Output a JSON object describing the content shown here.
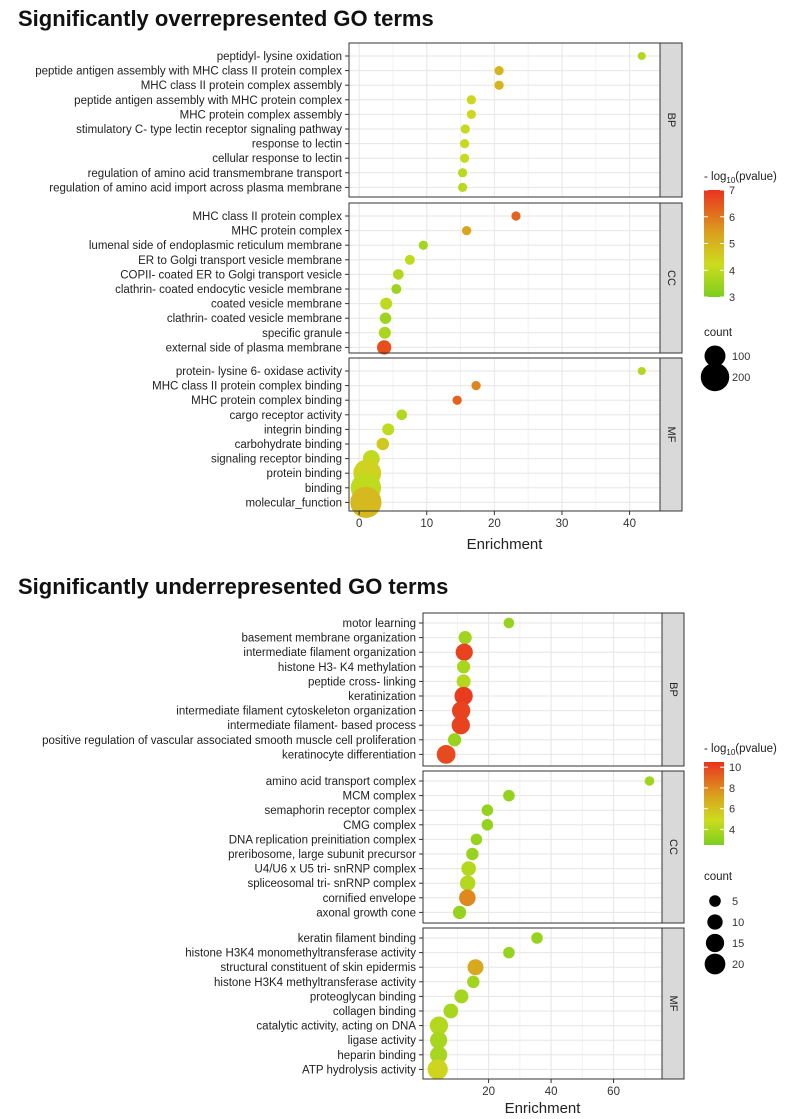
{
  "chart_data": [
    {
      "type": "scatter",
      "title": "Significantly overrepresented GO terms",
      "xlabel": "Enrichment",
      "xlim": [
        -1.5,
        44.5
      ],
      "x_ticks": [
        0,
        10,
        20,
        30,
        40
      ],
      "grid": true,
      "legend_position": "right",
      "color_legend": {
        "title_prefix": "- log",
        "title_sub": "10",
        "title_suffix": "(pvalue)",
        "min": 3,
        "max": 7,
        "ticks": [
          3,
          4,
          5,
          6,
          7
        ]
      },
      "size_legend": {
        "title": "count",
        "ticks": [
          100,
          200
        ]
      },
      "facets": [
        {
          "label": "BP",
          "points": [
            {
              "term": "peptidyl- lysine oxidation",
              "x": 41.8,
              "pval": 3.8,
              "count": 8
            },
            {
              "term": "peptide antigen assembly with MHC class II protein complex",
              "x": 20.7,
              "pval": 5.0,
              "count": 12
            },
            {
              "term": "MHC class II protein complex assembly",
              "x": 20.7,
              "pval": 5.0,
              "count": 12
            },
            {
              "term": "peptide antigen assembly with MHC protein complex",
              "x": 16.6,
              "pval": 4.3,
              "count": 12
            },
            {
              "term": "MHC protein complex assembly",
              "x": 16.6,
              "pval": 4.3,
              "count": 12
            },
            {
              "term": "stimulatory C- type lectin receptor signaling pathway",
              "x": 15.7,
              "pval": 4.1,
              "count": 12
            },
            {
              "term": "response to lectin",
              "x": 15.6,
              "pval": 4.1,
              "count": 12
            },
            {
              "term": "cellular response to lectin",
              "x": 15.6,
              "pval": 4.1,
              "count": 12
            },
            {
              "term": "regulation of amino acid transmembrane transport",
              "x": 15.3,
              "pval": 3.9,
              "count": 12
            },
            {
              "term": "regulation of amino acid import across plasma membrane",
              "x": 15.3,
              "pval": 3.9,
              "count": 12
            }
          ]
        },
        {
          "label": "CC",
          "points": [
            {
              "term": "MHC class II protein complex",
              "x": 23.2,
              "pval": 6.3,
              "count": 12
            },
            {
              "term": "MHC protein complex",
              "x": 15.9,
              "pval": 5.3,
              "count": 12
            },
            {
              "term": "lumenal side of endoplasmic reticulum membrane",
              "x": 9.5,
              "pval": 3.6,
              "count": 12
            },
            {
              "term": "ER to Golgi transport vesicle membrane",
              "x": 7.5,
              "pval": 4.0,
              "count": 15
            },
            {
              "term": "COPII- coated ER to Golgi transport vesicle",
              "x": 5.8,
              "pval": 3.8,
              "count": 18
            },
            {
              "term": "clathrin- coated endocytic vesicle membrane",
              "x": 5.5,
              "pval": 3.5,
              "count": 15
            },
            {
              "term": "coated vesicle membrane",
              "x": 4.0,
              "pval": 4.0,
              "count": 25
            },
            {
              "term": "clathrin- coated vesicle membrane",
              "x": 3.9,
              "pval": 3.5,
              "count": 22
            },
            {
              "term": "specific granule",
              "x": 3.8,
              "pval": 3.7,
              "count": 25
            },
            {
              "term": "external side of plasma membrane",
              "x": 3.7,
              "pval": 6.6,
              "count": 40
            }
          ]
        },
        {
          "label": "MF",
          "points": [
            {
              "term": "protein- lysine 6- oxidase activity",
              "x": 41.8,
              "pval": 3.8,
              "count": 8
            },
            {
              "term": "MHC class II protein complex binding",
              "x": 17.3,
              "pval": 5.8,
              "count": 12
            },
            {
              "term": "MHC protein complex binding",
              "x": 14.5,
              "pval": 6.3,
              "count": 12
            },
            {
              "term": "cargo receptor activity",
              "x": 6.3,
              "pval": 3.8,
              "count": 18
            },
            {
              "term": "integrin binding",
              "x": 4.3,
              "pval": 4.0,
              "count": 25
            },
            {
              "term": "carbohydrate binding",
              "x": 3.5,
              "pval": 4.6,
              "count": 28
            },
            {
              "term": "signaling receptor binding",
              "x": 1.8,
              "pval": 4.0,
              "count": 60
            },
            {
              "term": "protein binding",
              "x": 1.2,
              "pval": 4.4,
              "count": 190
            },
            {
              "term": "binding",
              "x": 1.0,
              "pval": 4.0,
              "count": 230
            },
            {
              "term": "molecular_function",
              "x": 1.0,
              "pval": 4.9,
              "count": 245
            }
          ]
        }
      ]
    },
    {
      "type": "scatter",
      "title": "Significantly underrepresented GO terms",
      "xlabel": "Enrichment",
      "xlim": [
        -1.0,
        75.5
      ],
      "x_ticks": [
        20,
        40,
        60
      ],
      "grid": true,
      "legend_position": "right",
      "color_legend": {
        "title_prefix": "- log",
        "title_sub": "10",
        "title_suffix": "(pvalue)",
        "min": 2.5,
        "max": 10.5,
        "ticks": [
          4,
          6,
          8,
          10
        ]
      },
      "size_legend": {
        "title": "count",
        "ticks": [
          5,
          10,
          15,
          20
        ]
      },
      "facets": [
        {
          "label": "BP",
          "points": [
            {
              "term": "motor learning",
              "x": 26.5,
              "pval": 3.3,
              "count": 4
            },
            {
              "term": "basement membrane organization",
              "x": 12.5,
              "pval": 3.6,
              "count": 7
            },
            {
              "term": "intermediate filament organization",
              "x": 12.2,
              "pval": 10.0,
              "count": 13
            },
            {
              "term": "histone H3- K4 methylation",
              "x": 12.0,
              "pval": 3.8,
              "count": 7
            },
            {
              "term": "peptide cross- linking",
              "x": 12.0,
              "pval": 4.2,
              "count": 8
            },
            {
              "term": "keratinization",
              "x": 12.0,
              "pval": 10.2,
              "count": 15
            },
            {
              "term": "intermediate filament cytoskeleton organization",
              "x": 11.2,
              "pval": 10.0,
              "count": 15
            },
            {
              "term": "intermediate filament- based process",
              "x": 11.1,
              "pval": 10.0,
              "count": 15
            },
            {
              "term": "positive regulation of vascular associated smooth muscle cell proliferation",
              "x": 9.1,
              "pval": 3.4,
              "count": 7
            },
            {
              "term": "keratinocyte differentiation",
              "x": 6.4,
              "pval": 9.8,
              "count": 16
            }
          ]
        },
        {
          "label": "CC",
          "points": [
            {
              "term": "amino acid transport complex",
              "x": 71.5,
              "pval": 3.5,
              "count": 3
            },
            {
              "term": "MCM complex",
              "x": 26.5,
              "pval": 3.2,
              "count": 5
            },
            {
              "term": "semaphorin receptor complex",
              "x": 19.6,
              "pval": 3.2,
              "count": 5
            },
            {
              "term": "CMG complex",
              "x": 19.6,
              "pval": 3.2,
              "count": 5
            },
            {
              "term": "DNA replication preinitiation complex",
              "x": 16.1,
              "pval": 3.3,
              "count": 5
            },
            {
              "term": "preribosome, large subunit precursor",
              "x": 14.8,
              "pval": 3.3,
              "count": 6
            },
            {
              "term": "U4/U6 x U5 tri- snRNP complex",
              "x": 13.6,
              "pval": 4.2,
              "count": 9
            },
            {
              "term": "spliceosomal tri- snRNP complex",
              "x": 13.3,
              "pval": 4.2,
              "count": 10
            },
            {
              "term": "cornified envelope",
              "x": 13.2,
              "pval": 8.0,
              "count": 12
            },
            {
              "term": "axonal growth cone",
              "x": 10.7,
              "pval": 3.3,
              "count": 7
            }
          ]
        },
        {
          "label": "MF",
          "points": [
            {
              "term": "keratin filament binding",
              "x": 35.5,
              "pval": 3.3,
              "count": 5
            },
            {
              "term": "histone H3K4 monomethyltransferase activity",
              "x": 26.5,
              "pval": 3.3,
              "count": 5
            },
            {
              "term": "structural constituent of skin epidermis",
              "x": 15.8,
              "pval": 7.0,
              "count": 11
            },
            {
              "term": "histone H3K4 methyltransferase activity",
              "x": 15.1,
              "pval": 3.6,
              "count": 6
            },
            {
              "term": "proteoglycan binding",
              "x": 11.3,
              "pval": 3.7,
              "count": 8
            },
            {
              "term": "collagen binding",
              "x": 7.9,
              "pval": 3.8,
              "count": 9
            },
            {
              "term": "catalytic activity, acting on DNA",
              "x": 4.1,
              "pval": 4.2,
              "count": 15
            },
            {
              "term": "ligase activity",
              "x": 4.0,
              "pval": 3.8,
              "count": 13
            },
            {
              "term": "heparin binding",
              "x": 4.0,
              "pval": 3.8,
              "count": 13
            },
            {
              "term": "ATP hydrolysis activity",
              "x": 3.7,
              "pval": 5.2,
              "count": 19
            }
          ]
        }
      ]
    }
  ]
}
